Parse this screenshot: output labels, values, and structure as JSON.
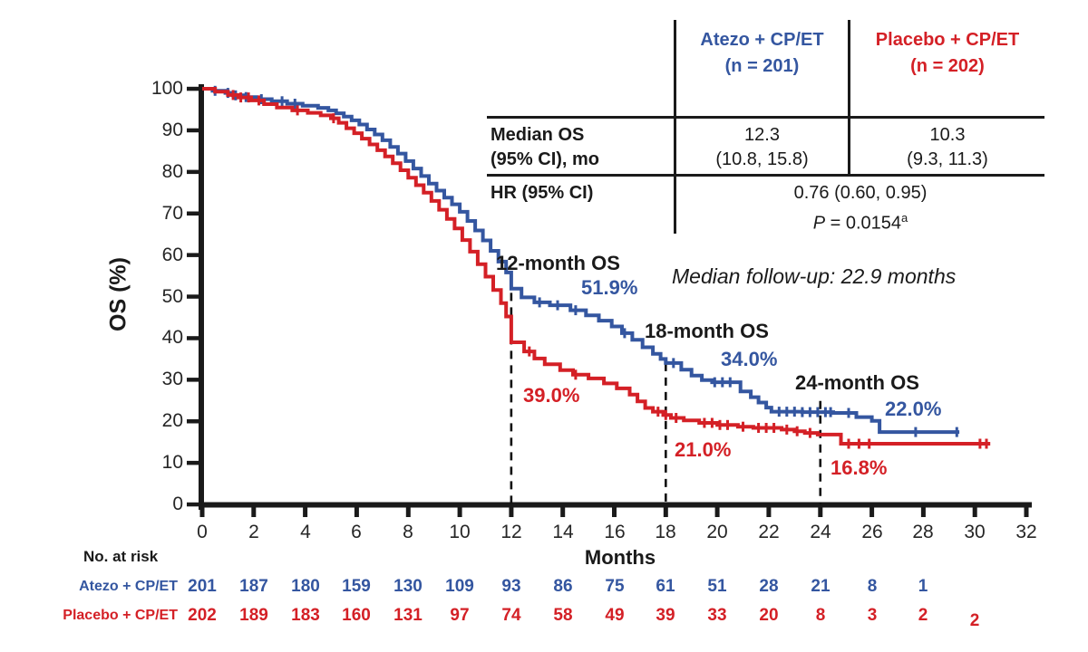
{
  "colors": {
    "atezo": "#3456A0",
    "placebo": "#D42026",
    "ink": "#1A1A1A"
  },
  "followup_note": "Median follow-up: 22.9 months",
  "table": {
    "header": {
      "atezo": {
        "line1": "Atezo + CP/ET",
        "line2": "(n = 201)"
      },
      "placebo": {
        "line1": "Placebo + CP/ET",
        "line2": "(n = 202)"
      }
    },
    "median_row": {
      "label1": "Median OS",
      "label2": "(95% CI), mo",
      "atezo1": "12.3",
      "atezo2": "(10.8, 15.8)",
      "placebo1": "10.3",
      "placebo2": "(9.3, 11.3)"
    },
    "hr_row": {
      "label": "HR (95% CI)",
      "value": "0.76 (0.60, 0.95)",
      "p": "P",
      "p_rest": " = 0.0154",
      "p_sup": "a"
    }
  },
  "annotations": [
    {
      "id": "os12",
      "label": "12-month OS",
      "atezo_value": "51.9%",
      "placebo_value": "39.0%"
    },
    {
      "id": "os18",
      "label": "18-month OS",
      "atezo_value": "34.0%",
      "placebo_value": "21.0%"
    },
    {
      "id": "os24",
      "label": "24-month OS",
      "atezo_value": "22.0%",
      "placebo_value": "16.8%"
    }
  ],
  "chart_data": {
    "type": "line",
    "style": "kaplan-meier-step",
    "x_axis": {
      "label": "Months",
      "range": [
        0,
        32
      ],
      "ticks": [
        0,
        2,
        4,
        6,
        8,
        10,
        12,
        14,
        16,
        18,
        20,
        22,
        24,
        26,
        28,
        30,
        32
      ]
    },
    "y_axis": {
      "label": "OS (%)",
      "range": [
        0,
        100
      ],
      "ticks": [
        0,
        10,
        20,
        30,
        40,
        50,
        60,
        70,
        80,
        90,
        100
      ]
    },
    "reference_lines": [
      {
        "month": 12,
        "top_pct": 50.9
      },
      {
        "month": 18,
        "top_pct": 34.0
      },
      {
        "month": 24,
        "top_pct": 24.9
      }
    ],
    "series": [
      {
        "name": "Atezo + CP/ET",
        "n": 201,
        "os_12mo": 51.9,
        "os_18mo": 34.0,
        "os_24mo": 22.0,
        "median_os": 12.3,
        "steps": [
          [
            0,
            100
          ],
          [
            0.4,
            99.5
          ],
          [
            0.9,
            99
          ],
          [
            1.2,
            98.4
          ],
          [
            1.6,
            98
          ],
          [
            2.1,
            97.5
          ],
          [
            2.7,
            97
          ],
          [
            3.3,
            96.4
          ],
          [
            3.9,
            95.9
          ],
          [
            4.5,
            95.4
          ],
          [
            4.9,
            94.8
          ],
          [
            5.2,
            94.1
          ],
          [
            5.5,
            93.3
          ],
          [
            5.8,
            92.4
          ],
          [
            6.1,
            91.4
          ],
          [
            6.4,
            90.2
          ],
          [
            6.7,
            89
          ],
          [
            7,
            87.6
          ],
          [
            7.3,
            86
          ],
          [
            7.6,
            84.4
          ],
          [
            7.9,
            82.6
          ],
          [
            8.2,
            80.8
          ],
          [
            8.5,
            79
          ],
          [
            8.8,
            77.2
          ],
          [
            9.1,
            75.5
          ],
          [
            9.4,
            73.8
          ],
          [
            9.7,
            72.2
          ],
          [
            10,
            70.4
          ],
          [
            10.3,
            68.2
          ],
          [
            10.6,
            65.9
          ],
          [
            10.9,
            63.5
          ],
          [
            11.2,
            61
          ],
          [
            11.5,
            58.4
          ],
          [
            11.8,
            55.8
          ],
          [
            12,
            51.9
          ],
          [
            12.4,
            49.8
          ],
          [
            12.9,
            48.6
          ],
          [
            13.5,
            47.9
          ],
          [
            14.3,
            46.7
          ],
          [
            14.9,
            45.5
          ],
          [
            15.4,
            44.2
          ],
          [
            15.9,
            42.8
          ],
          [
            16.3,
            41.2
          ],
          [
            16.7,
            39.6
          ],
          [
            17.1,
            37.8
          ],
          [
            17.5,
            36.2
          ],
          [
            17.8,
            35
          ],
          [
            18,
            34
          ],
          [
            18.6,
            32.4
          ],
          [
            19,
            31
          ],
          [
            19.4,
            29.9
          ],
          [
            19.8,
            29.4
          ],
          [
            20.9,
            27.2
          ],
          [
            21.3,
            25.8
          ],
          [
            21.6,
            24.5
          ],
          [
            21.9,
            23.3
          ],
          [
            22.1,
            22.3
          ],
          [
            23.3,
            22.2
          ],
          [
            24.5,
            22
          ],
          [
            25.4,
            21
          ],
          [
            26,
            20.1
          ],
          [
            26.3,
            17.4
          ],
          [
            29.4,
            17.4
          ]
        ],
        "censors": [
          [
            0.5,
            99.5
          ],
          [
            1.0,
            99
          ],
          [
            1.3,
            98.4
          ],
          [
            1.7,
            98
          ],
          [
            2.3,
            97.5
          ],
          [
            3.1,
            97
          ],
          [
            3.6,
            96.4
          ],
          [
            13.1,
            48.6
          ],
          [
            13.8,
            47.9
          ],
          [
            14.5,
            46.7
          ],
          [
            16.4,
            41.2
          ],
          [
            18.3,
            34
          ],
          [
            19.9,
            29.4
          ],
          [
            20.2,
            29.4
          ],
          [
            20.5,
            29.4
          ],
          [
            22.4,
            22.3
          ],
          [
            22.7,
            22.3
          ],
          [
            23,
            22.3
          ],
          [
            23.3,
            22.2
          ],
          [
            23.6,
            22.2
          ],
          [
            23.9,
            22.2
          ],
          [
            24.2,
            22.2
          ],
          [
            24.4,
            22.2
          ],
          [
            25.1,
            22
          ],
          [
            27.7,
            17.4
          ],
          [
            29.3,
            17.4
          ]
        ]
      },
      {
        "name": "Placebo + CP/ET",
        "n": 202,
        "os_12mo": 39.0,
        "os_18mo": 21.0,
        "os_24mo": 16.8,
        "median_os": 10.3,
        "steps": [
          [
            0,
            100
          ],
          [
            0.5,
            99.3
          ],
          [
            1,
            98.5
          ],
          [
            1.4,
            97.9
          ],
          [
            1.9,
            97.2
          ],
          [
            2.4,
            96.3
          ],
          [
            2.9,
            95.5
          ],
          [
            3.5,
            94.8
          ],
          [
            4.1,
            94.2
          ],
          [
            4.6,
            93.6
          ],
          [
            5,
            92.9
          ],
          [
            5.3,
            91.8
          ],
          [
            5.6,
            90.5
          ],
          [
            5.9,
            89.3
          ],
          [
            6.2,
            88
          ],
          [
            6.5,
            86.6
          ],
          [
            6.8,
            85.2
          ],
          [
            7.1,
            83.7
          ],
          [
            7.4,
            82.1
          ],
          [
            7.7,
            80.4
          ],
          [
            8,
            78.6
          ],
          [
            8.3,
            76.8
          ],
          [
            8.6,
            75
          ],
          [
            8.9,
            73
          ],
          [
            9.2,
            70.9
          ],
          [
            9.5,
            68.7
          ],
          [
            9.8,
            66.4
          ],
          [
            10.1,
            63.6
          ],
          [
            10.4,
            60.8
          ],
          [
            10.7,
            57.8
          ],
          [
            11,
            54.8
          ],
          [
            11.3,
            51.6
          ],
          [
            11.6,
            48.4
          ],
          [
            11.8,
            45.2
          ],
          [
            12,
            39
          ],
          [
            12.5,
            36.8
          ],
          [
            12.9,
            35.1
          ],
          [
            13.3,
            33.7
          ],
          [
            13.9,
            32.3
          ],
          [
            14.4,
            31.2
          ],
          [
            15,
            30.3
          ],
          [
            15.6,
            29.1
          ],
          [
            16.1,
            27.9
          ],
          [
            16.6,
            26.4
          ],
          [
            16.9,
            24.8
          ],
          [
            17.2,
            23.2
          ],
          [
            17.5,
            22.3
          ],
          [
            17.9,
            21.5
          ],
          [
            18.2,
            20.8
          ],
          [
            18.7,
            20.2
          ],
          [
            19.3,
            19.6
          ],
          [
            20,
            19.1
          ],
          [
            20.8,
            18.7
          ],
          [
            21.4,
            18.4
          ],
          [
            22.5,
            18
          ],
          [
            23,
            17.6
          ],
          [
            23.4,
            17.2
          ],
          [
            23.9,
            16.8
          ],
          [
            24.8,
            14.6
          ],
          [
            30.6,
            14.6
          ]
        ],
        "censors": [
          [
            1.2,
            98.5
          ],
          [
            1.5,
            97.9
          ],
          [
            1.8,
            97.9
          ],
          [
            2.2,
            97.2
          ],
          [
            3.7,
            94.8
          ],
          [
            5.1,
            92.9
          ],
          [
            12.7,
            36.8
          ],
          [
            14.5,
            31.2
          ],
          [
            17.7,
            22.3
          ],
          [
            18,
            21.5
          ],
          [
            18.4,
            20.8
          ],
          [
            19.5,
            19.6
          ],
          [
            19.8,
            19.6
          ],
          [
            20.1,
            19.1
          ],
          [
            20.4,
            19.1
          ],
          [
            21,
            18.7
          ],
          [
            21.6,
            18.4
          ],
          [
            21.9,
            18.4
          ],
          [
            22.2,
            18.4
          ],
          [
            22.7,
            18
          ],
          [
            23.1,
            17.6
          ],
          [
            23.6,
            17.2
          ],
          [
            25.1,
            14.6
          ],
          [
            25.5,
            14.6
          ],
          [
            25.9,
            14.6
          ],
          [
            30.2,
            14.6
          ],
          [
            30.45,
            14.6
          ]
        ]
      }
    ]
  },
  "at_risk": {
    "title": "No. at risk",
    "months": [
      0,
      2,
      4,
      6,
      8,
      10,
      12,
      14,
      16,
      18,
      20,
      22,
      24,
      26,
      28,
      30
    ],
    "rows": [
      {
        "label": "Atezo + CP/ET",
        "values": [
          201,
          187,
          180,
          159,
          130,
          109,
          93,
          86,
          75,
          61,
          51,
          28,
          21,
          8,
          1
        ]
      },
      {
        "label": "Placebo + CP/ET",
        "values": [
          202,
          189,
          183,
          160,
          131,
          97,
          74,
          58,
          49,
          39,
          33,
          20,
          8,
          3,
          2,
          2
        ]
      }
    ]
  }
}
